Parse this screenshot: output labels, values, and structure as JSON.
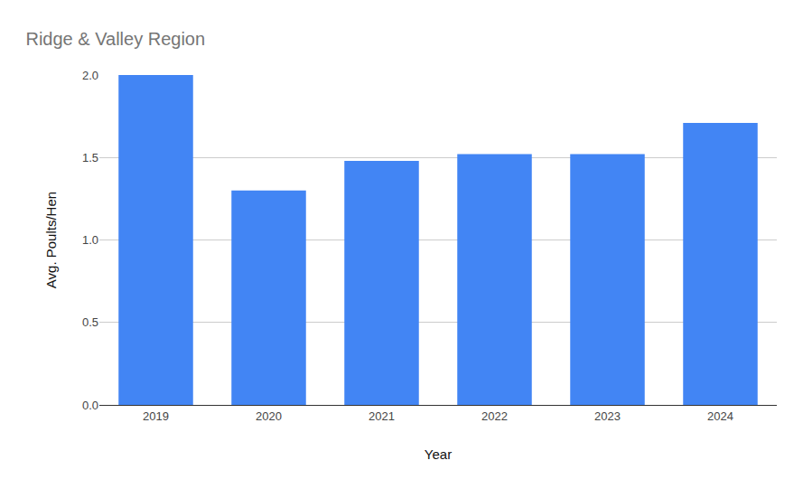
{
  "chart_data": {
    "type": "bar",
    "title": "Ridge & Valley Region",
    "x_label": "Year",
    "y_label": "Avg. Poults/Hen",
    "categories": [
      "2019",
      "2020",
      "2021",
      "2022",
      "2023",
      "2024"
    ],
    "values": [
      2.0,
      1.3,
      1.48,
      1.52,
      1.52,
      1.71
    ],
    "color": "#4285f4",
    "ylim": [
      0,
      2
    ],
    "yticks": [
      {
        "value": 0,
        "label": "0.0"
      },
      {
        "value": 0.5,
        "label": "0.5"
      },
      {
        "value": 1,
        "label": "1.0"
      },
      {
        "value": 1.5,
        "label": "1.5"
      },
      {
        "value": 2,
        "label": "2.0"
      }
    ],
    "grid": true
  }
}
